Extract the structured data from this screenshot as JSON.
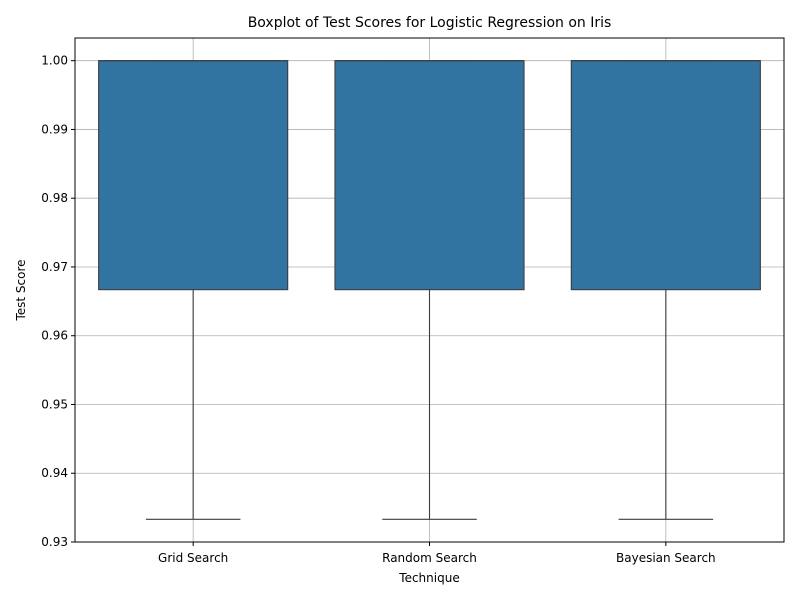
{
  "chart_data": {
    "type": "boxplot",
    "title": "Boxplot of Test Scores for Logistic Regression on Iris",
    "xlabel": "Technique",
    "ylabel": "Test Score",
    "categories": [
      "Grid Search",
      "Random Search",
      "Bayesian Search"
    ],
    "boxes": [
      {
        "category": "Grid Search",
        "min": 0.9333,
        "q1": 0.9667,
        "median": 1.0,
        "q3": 1.0,
        "max": 1.0
      },
      {
        "category": "Random Search",
        "min": 0.9333,
        "q1": 0.9667,
        "median": 1.0,
        "q3": 1.0,
        "max": 1.0
      },
      {
        "category": "Bayesian Search",
        "min": 0.9333,
        "q1": 0.9667,
        "median": 1.0,
        "q3": 1.0,
        "max": 1.0
      }
    ],
    "ylim": [
      0.93,
      1.0033
    ],
    "yticks": [
      "0.93",
      "0.94",
      "0.95",
      "0.96",
      "0.97",
      "0.98",
      "0.99",
      "1.00"
    ],
    "grid": true,
    "box_color": "#3274a1",
    "edge_color": "#3d3d3d",
    "grid_color": "#b0b0b0"
  }
}
